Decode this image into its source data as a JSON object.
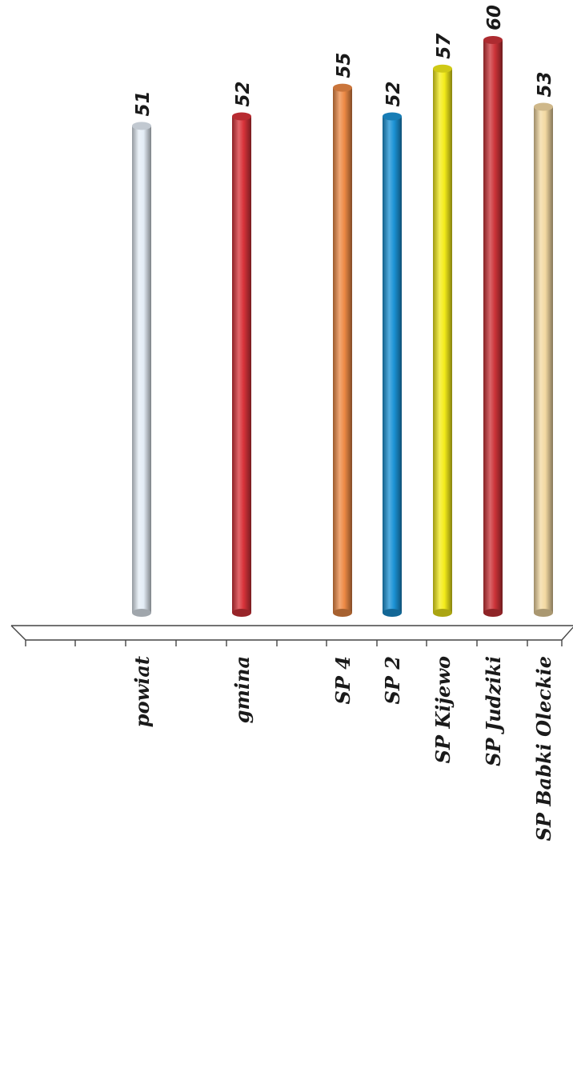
{
  "chart_data": {
    "type": "bar",
    "categories": [
      "powiat",
      "gmina",
      "SP 4",
      "SP 2",
      "SP Kijewo",
      "SP Judziki",
      "SP Babki Oleckie"
    ],
    "values": [
      51,
      52,
      55,
      52,
      57,
      60,
      53
    ],
    "value_labels": [
      "51",
      "52",
      "55",
      "52",
      "57",
      "60",
      "53"
    ],
    "colors": [
      "#e4edf6",
      "#d9333a",
      "#ee8a45",
      "#1b93d6",
      "#f4ec1a",
      "#cc3338",
      "#f3d9a2"
    ],
    "ylim": [
      0,
      60
    ],
    "grid": false,
    "orientation": "rotated-90",
    "style": "3d-cylinder"
  }
}
